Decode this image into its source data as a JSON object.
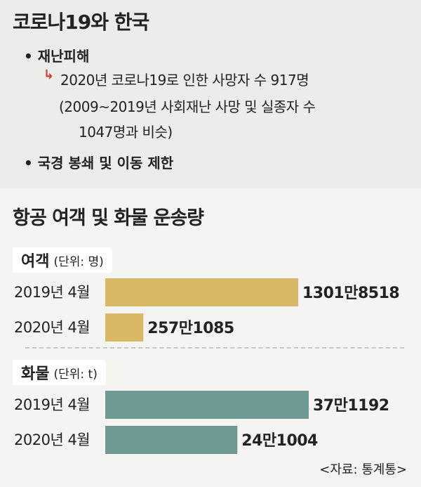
{
  "summary": {
    "title": "코로나19와 한국",
    "bullets": [
      {
        "text": "• 재난피해",
        "arrow": "↳",
        "sub_lines": [
          "2020년 코로나19로 인한 사망자 수 917명",
          "(2009~2019년 사회재난 사망 및 실종자 수",
          "1047명과 비슷)"
        ]
      },
      {
        "text": "• 국경 봉쇄 및 이동 제한"
      }
    ]
  },
  "chart_data": {
    "type": "bar",
    "orientation": "horizontal",
    "title": "항공 여객 및 화물 운송량",
    "source": "<자료: 통계통>",
    "sections": [
      {
        "label": "여객",
        "unit": "(단위: 명)",
        "color": "#d8b767",
        "categories": [
          "2019년 4월",
          "2020년 4월"
        ],
        "values": [
          13018518,
          2571085
        ],
        "value_labels": [
          "1301만8518",
          "257만1085"
        ]
      },
      {
        "label": "화물",
        "unit": "(단위: t)",
        "color": "#6e9992",
        "categories": [
          "2019년 4월",
          "2020년 4월"
        ],
        "values": [
          371192,
          241004
        ],
        "value_labels": [
          "37만1192",
          "24만1004"
        ]
      }
    ]
  }
}
